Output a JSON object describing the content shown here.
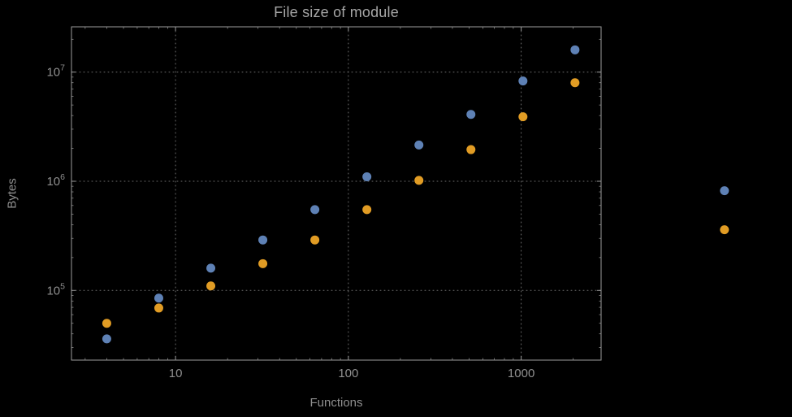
{
  "title": "File size of module",
  "chart_data": {
    "type": "scatter",
    "title": "File size of module",
    "xlabel": "Functions",
    "ylabel": "Bytes",
    "x_scale": "log",
    "y_scale": "log",
    "xlim": [
      2.5,
      2900
    ],
    "ylim": [
      23000,
      26000000
    ],
    "legend": "none",
    "grid": {
      "style": "dotted",
      "x_values": [
        10,
        100,
        1000
      ],
      "y_values": [
        100000,
        1000000,
        10000000
      ]
    },
    "x": [
      4,
      8,
      16,
      32,
      64,
      128,
      256,
      512,
      1024,
      2048,
      15000
    ],
    "series": [
      {
        "name": "blue",
        "color": "#5e81b5",
        "values": [
          36000,
          85000,
          160000,
          290000,
          550000,
          1100000,
          2150000,
          4100000,
          8300000,
          16000000,
          820000
        ]
      },
      {
        "name": "orange",
        "color": "#e19c24",
        "values": [
          50000,
          69000,
          110000,
          176000,
          290000,
          550000,
          1020000,
          1950000,
          3900000,
          8000000,
          360000
        ]
      }
    ],
    "x_ticks": [
      {
        "value": 10,
        "label": "10"
      },
      {
        "value": 100,
        "label": "100"
      },
      {
        "value": 1000,
        "label": "1000"
      }
    ],
    "y_ticks": [
      {
        "value": 100000,
        "mantissa": "10",
        "exponent": "5"
      },
      {
        "value": 1000000,
        "mantissa": "10",
        "exponent": "6"
      },
      {
        "value": 10000000,
        "mantissa": "10",
        "exponent": "7"
      }
    ]
  },
  "colors": {
    "background": "#000000",
    "frame": "#9b9b9b",
    "grid": "#6e6e6e",
    "tick_text": "#8f8f8f",
    "title_text": "#a6a6a6"
  }
}
